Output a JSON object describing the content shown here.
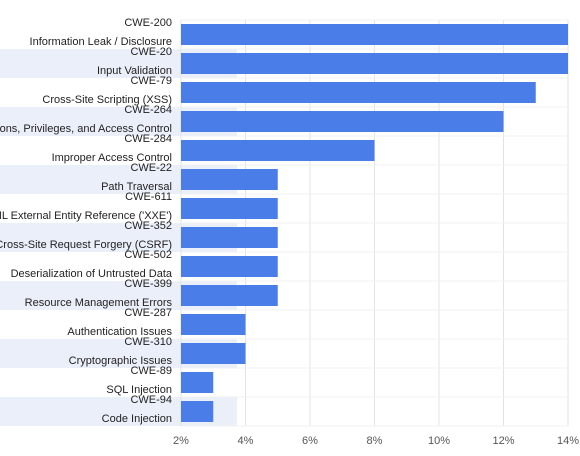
{
  "chart_data": {
    "type": "bar",
    "orientation": "horizontal",
    "categories": [
      [
        "CWE-200",
        "Information Leak / Disclosure"
      ],
      [
        "CWE-20",
        "Input Validation"
      ],
      [
        "CWE-79",
        "Cross-Site Scripting (XSS)"
      ],
      [
        "CWE-264",
        "Permissions, Privileges, and Access Control"
      ],
      [
        "CWE-284",
        "Improper Access Control"
      ],
      [
        "CWE-22",
        "Path Traversal"
      ],
      [
        "CWE-611",
        "XML External Entity Reference ('XXE')"
      ],
      [
        "CWE-352",
        "Cross-Site Request Forgery (CSRF)"
      ],
      [
        "CWE-502",
        "Deserialization of Untrusted Data"
      ],
      [
        "CWE-399",
        "Resource Management Errors"
      ],
      [
        "CWE-287",
        "Authentication Issues"
      ],
      [
        "CWE-310",
        "Cryptographic Issues"
      ],
      [
        "CWE-89",
        "SQL Injection"
      ],
      [
        "CWE-94",
        "Code Injection"
      ]
    ],
    "values": [
      14,
      14,
      13,
      12,
      8,
      5,
      5,
      5,
      5,
      5,
      4,
      4,
      3,
      3
    ],
    "xlim": [
      2,
      14
    ],
    "x_ticks": [
      "2%",
      "4%",
      "6%",
      "8%",
      "10%",
      "12%",
      "14%"
    ],
    "tick_values": [
      2,
      4,
      6,
      8,
      10,
      12,
      14
    ],
    "title": "",
    "xlabel": "",
    "ylabel": "",
    "grid": true,
    "legend": "none",
    "bar_color": "#4a7de8",
    "band_color": "#eaeff9",
    "grid_color": "#e3e3e3"
  }
}
